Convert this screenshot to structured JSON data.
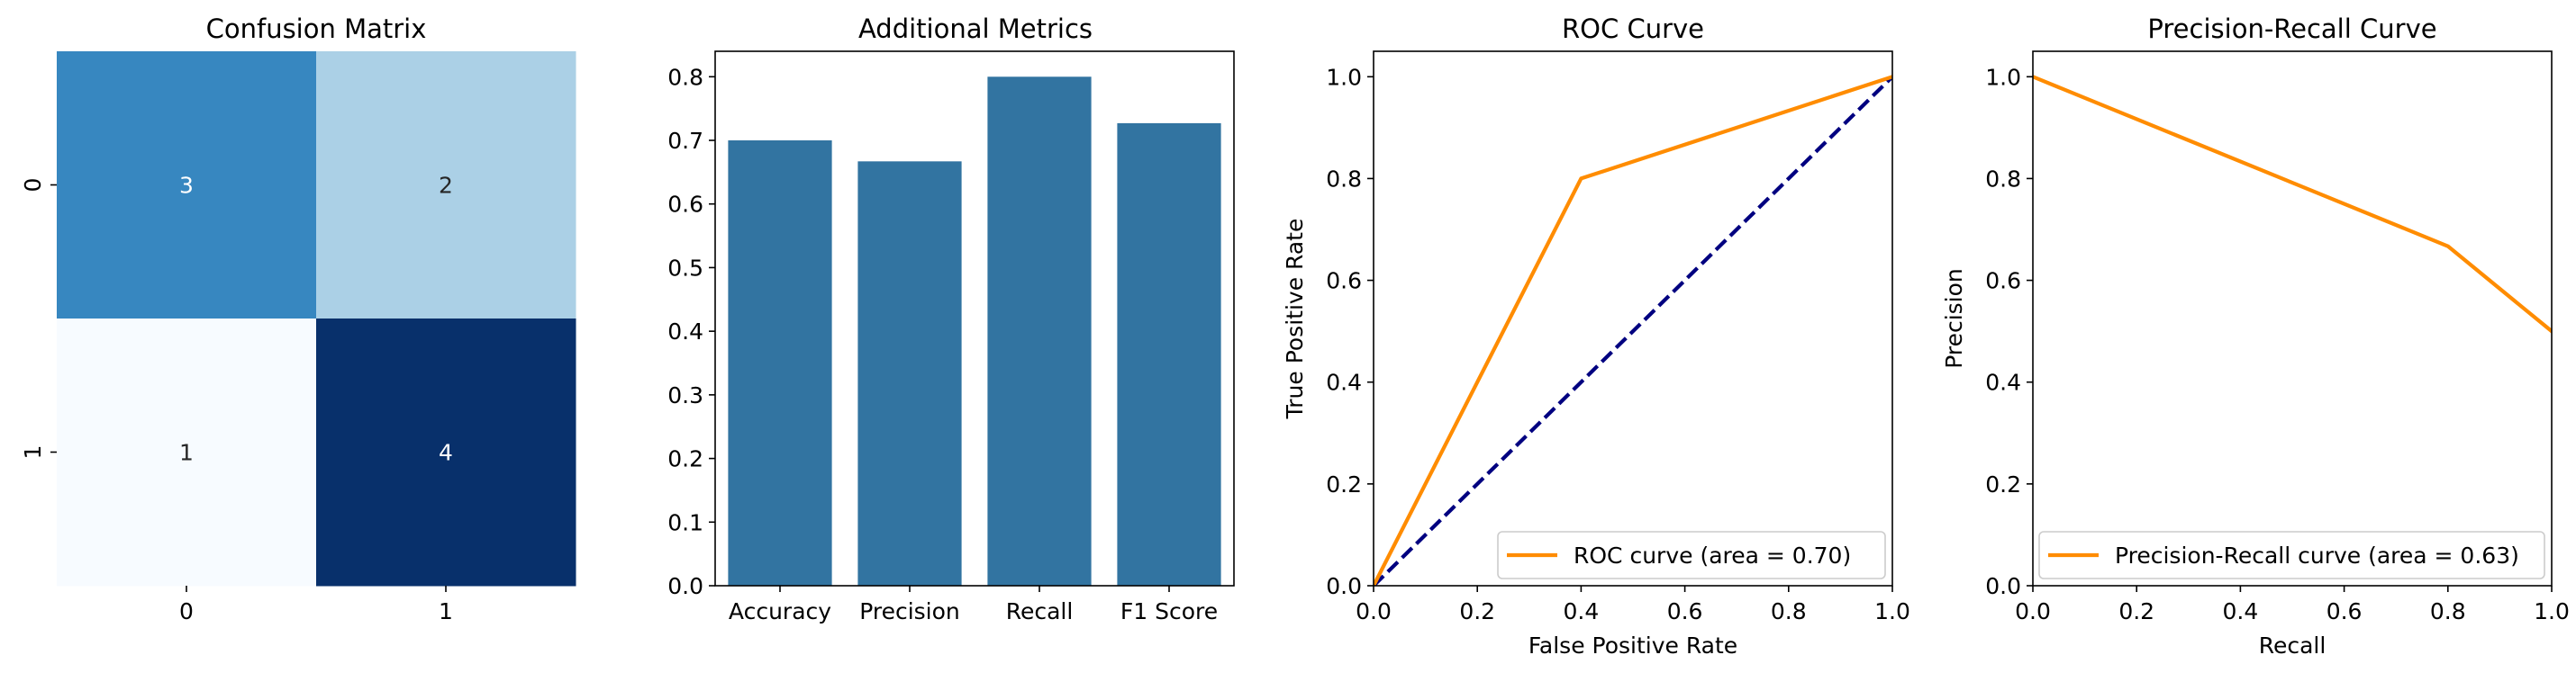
{
  "colors": {
    "bar": "#3274a1",
    "curve": "#ff8c00",
    "chance_line": "#000080",
    "heatmap_low": "#f7fbff",
    "heatmap_high": "#08306b"
  },
  "chart_data": [
    {
      "type": "heatmap",
      "title": "Confusion Matrix",
      "x_categories": [
        "0",
        "1"
      ],
      "y_categories": [
        "0",
        "1"
      ],
      "values": [
        [
          3,
          2
        ],
        [
          1,
          4
        ]
      ],
      "colormap": "Blues",
      "colorbar": false
    },
    {
      "type": "bar",
      "title": "Additional Metrics",
      "categories": [
        "Accuracy",
        "Precision",
        "Recall",
        "F1 Score"
      ],
      "values": [
        0.7,
        0.667,
        0.8,
        0.727
      ],
      "ylim": [
        0,
        0.84
      ],
      "yticks": [
        0.0,
        0.1,
        0.2,
        0.3,
        0.4,
        0.5,
        0.6,
        0.7,
        0.8
      ],
      "grid": false
    },
    {
      "type": "line",
      "title": "ROC Curve",
      "xlabel": "False Positive Rate",
      "ylabel": "True Positive Rate",
      "xlim": [
        0,
        1
      ],
      "ylim": [
        0,
        1.05
      ],
      "xticks": [
        0.0,
        0.2,
        0.4,
        0.6,
        0.8,
        1.0
      ],
      "yticks": [
        0.0,
        0.2,
        0.4,
        0.6,
        0.8,
        1.0
      ],
      "legend_position": "bottom-right",
      "series": [
        {
          "name": "ROC curve (area = 0.70)",
          "x": [
            0.0,
            0.4,
            1.0
          ],
          "y": [
            0.0,
            0.8,
            1.0
          ],
          "style": "solid",
          "in_legend": true
        },
        {
          "name": "",
          "x": [
            0.0,
            1.0
          ],
          "y": [
            0.0,
            1.0
          ],
          "style": "dashed",
          "in_legend": false
        }
      ],
      "grid": false
    },
    {
      "type": "line",
      "title": "Precision-Recall Curve",
      "xlabel": "Recall",
      "ylabel": "Precision",
      "xlim": [
        0,
        1
      ],
      "ylim": [
        0,
        1.05
      ],
      "xticks": [
        0.0,
        0.2,
        0.4,
        0.6,
        0.8,
        1.0
      ],
      "yticks": [
        0.0,
        0.2,
        0.4,
        0.6,
        0.8,
        1.0
      ],
      "legend_position": "bottom-right",
      "series": [
        {
          "name": "Precision-Recall curve (area = 0.63)",
          "x": [
            0.0,
            0.8,
            1.0
          ],
          "y": [
            1.0,
            0.667,
            0.5
          ],
          "style": "solid",
          "in_legend": true
        }
      ],
      "grid": false
    }
  ]
}
